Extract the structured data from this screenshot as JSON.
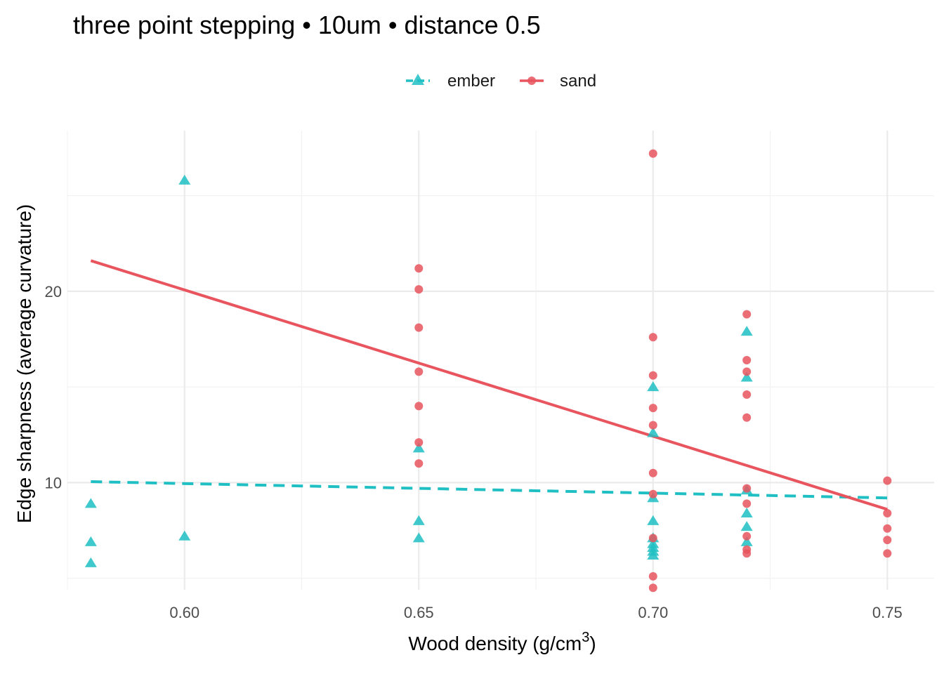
{
  "chart_data": {
    "type": "scatter",
    "title": "three point stepping • 10um • distance 0.5",
    "xlabel": "Wood density (g/cm",
    "xlabel_sup": "3",
    "xlabel_end": ")",
    "ylabel": "Edge sharpness (average curvature)",
    "xlim": [
      0.575,
      0.76
    ],
    "ylim": [
      4.4,
      28.4
    ],
    "x_ticks": [
      0.6,
      0.65,
      0.7,
      0.75
    ],
    "x_tick_labels": [
      "0.60",
      "0.65",
      "0.70",
      "0.75"
    ],
    "y_ticks": [
      10,
      20
    ],
    "y_tick_labels": [
      "10",
      "20"
    ],
    "grid": true,
    "legend_position": "top",
    "series": [
      {
        "name": "ember",
        "color": "#1fbfc3",
        "marker": "triangle",
        "line_style": "dashed",
        "fit": {
          "x": [
            0.58,
            0.75
          ],
          "y": [
            10.05,
            9.2
          ]
        },
        "points": [
          {
            "x": 0.58,
            "y": 8.9
          },
          {
            "x": 0.58,
            "y": 6.9
          },
          {
            "x": 0.58,
            "y": 5.8
          },
          {
            "x": 0.6,
            "y": 25.8
          },
          {
            "x": 0.6,
            "y": 7.2
          },
          {
            "x": 0.65,
            "y": 11.8
          },
          {
            "x": 0.65,
            "y": 8.0
          },
          {
            "x": 0.65,
            "y": 7.1
          },
          {
            "x": 0.7,
            "y": 15.0
          },
          {
            "x": 0.7,
            "y": 12.6
          },
          {
            "x": 0.7,
            "y": 9.2
          },
          {
            "x": 0.7,
            "y": 8.0
          },
          {
            "x": 0.7,
            "y": 7.1
          },
          {
            "x": 0.7,
            "y": 6.8
          },
          {
            "x": 0.7,
            "y": 6.6
          },
          {
            "x": 0.7,
            "y": 6.4
          },
          {
            "x": 0.7,
            "y": 6.2
          },
          {
            "x": 0.72,
            "y": 17.9
          },
          {
            "x": 0.72,
            "y": 15.5
          },
          {
            "x": 0.72,
            "y": 9.6
          },
          {
            "x": 0.72,
            "y": 8.4
          },
          {
            "x": 0.72,
            "y": 7.7
          },
          {
            "x": 0.72,
            "y": 6.9
          }
        ]
      },
      {
        "name": "sand",
        "color": "#e8555e",
        "marker": "circle",
        "line_style": "solid",
        "fit": {
          "x": [
            0.58,
            0.75
          ],
          "y": [
            21.6,
            8.6
          ]
        },
        "points": [
          {
            "x": 0.65,
            "y": 21.2
          },
          {
            "x": 0.65,
            "y": 20.1
          },
          {
            "x": 0.65,
            "y": 18.1
          },
          {
            "x": 0.65,
            "y": 15.8
          },
          {
            "x": 0.65,
            "y": 14.0
          },
          {
            "x": 0.65,
            "y": 12.1
          },
          {
            "x": 0.65,
            "y": 11.0
          },
          {
            "x": 0.7,
            "y": 27.2
          },
          {
            "x": 0.7,
            "y": 17.6
          },
          {
            "x": 0.7,
            "y": 15.6
          },
          {
            "x": 0.7,
            "y": 13.9
          },
          {
            "x": 0.7,
            "y": 13.0
          },
          {
            "x": 0.7,
            "y": 10.5
          },
          {
            "x": 0.7,
            "y": 9.4
          },
          {
            "x": 0.7,
            "y": 7.1
          },
          {
            "x": 0.7,
            "y": 5.1
          },
          {
            "x": 0.7,
            "y": 4.5
          },
          {
            "x": 0.72,
            "y": 18.8
          },
          {
            "x": 0.72,
            "y": 16.4
          },
          {
            "x": 0.72,
            "y": 15.8
          },
          {
            "x": 0.72,
            "y": 14.6
          },
          {
            "x": 0.72,
            "y": 13.4
          },
          {
            "x": 0.72,
            "y": 9.7
          },
          {
            "x": 0.72,
            "y": 8.9
          },
          {
            "x": 0.72,
            "y": 7.2
          },
          {
            "x": 0.72,
            "y": 6.5
          },
          {
            "x": 0.72,
            "y": 6.3
          },
          {
            "x": 0.75,
            "y": 10.1
          },
          {
            "x": 0.75,
            "y": 8.4
          },
          {
            "x": 0.75,
            "y": 7.6
          },
          {
            "x": 0.75,
            "y": 7.0
          },
          {
            "x": 0.75,
            "y": 6.3
          }
        ]
      }
    ]
  }
}
